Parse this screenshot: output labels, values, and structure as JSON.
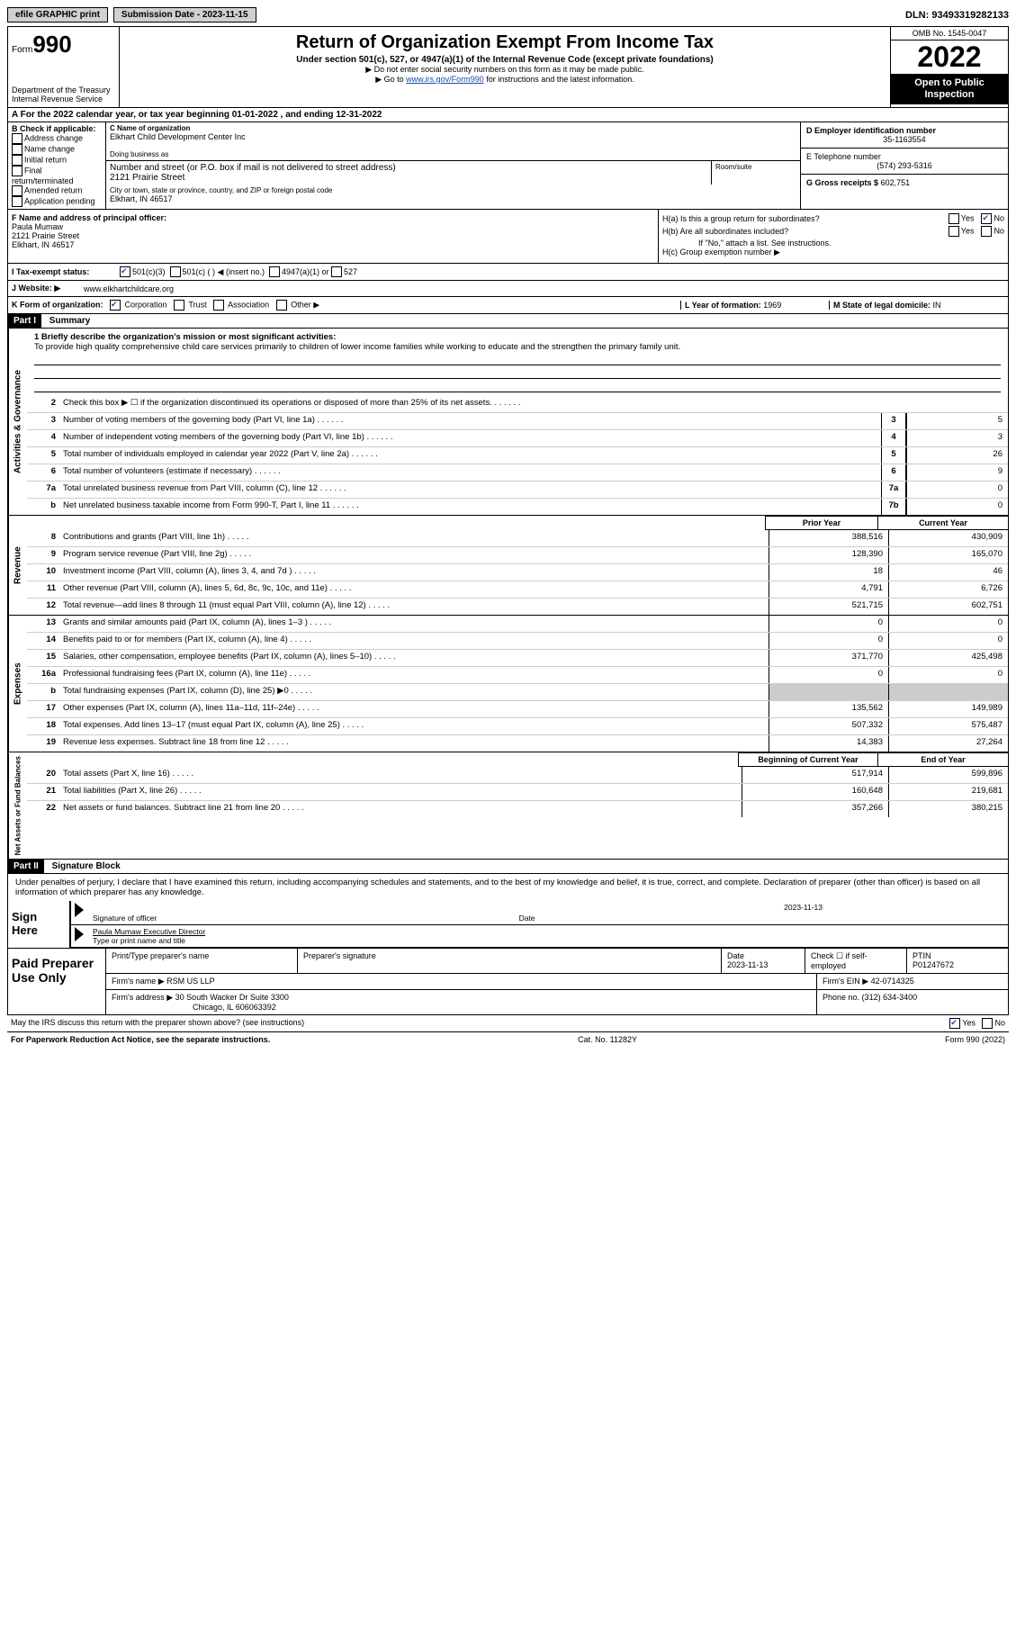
{
  "topbar": {
    "efile": "efile GRAPHIC print",
    "submission_label": "Submission Date - 2023-11-15",
    "dln_label": "DLN: 93493319282133"
  },
  "header": {
    "form_word": "Form",
    "form_num": "990",
    "dept1": "Department of the Treasury",
    "dept2": "Internal Revenue Service",
    "title": "Return of Organization Exempt From Income Tax",
    "subtitle": "Under section 501(c), 527, or 4947(a)(1) of the Internal Revenue Code (except private foundations)",
    "note1": "▶ Do not enter social security numbers on this form as it may be made public.",
    "note2_pre": "▶ Go to ",
    "note2_link": "www.irs.gov/Form990",
    "note2_post": " for instructions and the latest information.",
    "omb": "OMB No. 1545-0047",
    "year": "2022",
    "open": "Open to Public Inspection"
  },
  "row_a": "A For the 2022 calendar year, or tax year beginning 01-01-2022    , and ending 12-31-2022",
  "section_b": {
    "title": "B Check if applicable:",
    "opts": [
      "Address change",
      "Name change",
      "Initial return",
      "Final return/terminated",
      "Amended return",
      "Application pending"
    ]
  },
  "section_c": {
    "name_lbl": "C Name of organization",
    "name": "Elkhart Child Development Center Inc",
    "dba_lbl": "Doing business as",
    "addr_lbl": "Number and street (or P.O. box if mail is not delivered to street address)",
    "addr": "2121 Prairie Street",
    "room_lbl": "Room/suite",
    "city_lbl": "City or town, state or province, country, and ZIP or foreign postal code",
    "city": "Elkhart, IN  46517"
  },
  "section_d": {
    "ein_lbl": "D Employer identification number",
    "ein": "35-1163554",
    "phone_lbl": "E Telephone number",
    "phone": "(574) 293-5316",
    "gross_lbl": "G Gross receipts $",
    "gross": "602,751"
  },
  "section_f": {
    "lbl": "F Name and address of principal officer:",
    "name": "Paula Mumaw",
    "addr1": "2121 Prairie Street",
    "addr2": "Elkhart, IN  46517"
  },
  "section_h": {
    "ha": "H(a)  Is this a group return for subordinates?",
    "hb": "H(b)  Are all subordinates included?",
    "hb_note": "If \"No,\" attach a list. See instructions.",
    "hc": "H(c)  Group exemption number ▶",
    "yes": "Yes",
    "no": "No"
  },
  "row_i": {
    "lbl": "I   Tax-exempt status:",
    "o1": "501(c)(3)",
    "o2": "501(c) (   ) ◀ (insert no.)",
    "o3": "4947(a)(1) or",
    "o4": "527"
  },
  "row_j": {
    "lbl": "J   Website: ▶",
    "val": "www.elkhartchildcare.org"
  },
  "row_k": {
    "lbl": "K Form of organization:",
    "o1": "Corporation",
    "o2": "Trust",
    "o3": "Association",
    "o4": "Other ▶"
  },
  "row_l": {
    "lbl": "L Year of formation:",
    "val": "1969"
  },
  "row_m": {
    "lbl": "M State of legal domicile:",
    "val": "IN"
  },
  "part1": {
    "hdr": "Part I",
    "title": "Summary"
  },
  "side_labels": {
    "ag": "Activities & Governance",
    "rev": "Revenue",
    "exp": "Expenses",
    "net": "Net Assets or Fund Balances"
  },
  "mission": {
    "lbl": "1   Briefly describe the organization's mission or most significant activities:",
    "text": "To provide high quality comprehensive child care services primarily to children of lower income families while working to educate and the strengthen the primary family unit."
  },
  "lines_ag": [
    {
      "n": "2",
      "d": "Check this box ▶ ☐  if the organization discontinued its operations or disposed of more than 25% of its net assets.",
      "box": "",
      "v": ""
    },
    {
      "n": "3",
      "d": "Number of voting members of the governing body (Part VI, line 1a)",
      "box": "3",
      "v": "5"
    },
    {
      "n": "4",
      "d": "Number of independent voting members of the governing body (Part VI, line 1b)",
      "box": "4",
      "v": "3"
    },
    {
      "n": "5",
      "d": "Total number of individuals employed in calendar year 2022 (Part V, line 2a)",
      "box": "5",
      "v": "26"
    },
    {
      "n": "6",
      "d": "Total number of volunteers (estimate if necessary)",
      "box": "6",
      "v": "9"
    },
    {
      "n": "7a",
      "d": "Total unrelated business revenue from Part VIII, column (C), line 12",
      "box": "7a",
      "v": "0"
    },
    {
      "n": "b",
      "d": "Net unrelated business taxable income from Form 990-T, Part I, line 11",
      "box": "7b",
      "v": "0"
    }
  ],
  "col_hdrs": {
    "prior": "Prior Year",
    "current": "Current Year",
    "boy": "Beginning of Current Year",
    "eoy": "End of Year"
  },
  "lines_rev": [
    {
      "n": "8",
      "d": "Contributions and grants (Part VIII, line 1h)",
      "p": "388,516",
      "c": "430,909"
    },
    {
      "n": "9",
      "d": "Program service revenue (Part VIII, line 2g)",
      "p": "128,390",
      "c": "165,070"
    },
    {
      "n": "10",
      "d": "Investment income (Part VIII, column (A), lines 3, 4, and 7d )",
      "p": "18",
      "c": "46"
    },
    {
      "n": "11",
      "d": "Other revenue (Part VIII, column (A), lines 5, 6d, 8c, 9c, 10c, and 11e)",
      "p": "4,791",
      "c": "6,726"
    },
    {
      "n": "12",
      "d": "Total revenue—add lines 8 through 11 (must equal Part VIII, column (A), line 12)",
      "p": "521,715",
      "c": "602,751"
    }
  ],
  "lines_exp": [
    {
      "n": "13",
      "d": "Grants and similar amounts paid (Part IX, column (A), lines 1–3 )",
      "p": "0",
      "c": "0"
    },
    {
      "n": "14",
      "d": "Benefits paid to or for members (Part IX, column (A), line 4)",
      "p": "0",
      "c": "0"
    },
    {
      "n": "15",
      "d": "Salaries, other compensation, employee benefits (Part IX, column (A), lines 5–10)",
      "p": "371,770",
      "c": "425,498"
    },
    {
      "n": "16a",
      "d": "Professional fundraising fees (Part IX, column (A), line 11e)",
      "p": "0",
      "c": "0"
    },
    {
      "n": "b",
      "d": "Total fundraising expenses (Part IX, column (D), line 25) ▶0",
      "p": "gray",
      "c": "gray"
    },
    {
      "n": "17",
      "d": "Other expenses (Part IX, column (A), lines 11a–11d, 11f–24e)",
      "p": "135,562",
      "c": "149,989"
    },
    {
      "n": "18",
      "d": "Total expenses. Add lines 13–17 (must equal Part IX, column (A), line 25)",
      "p": "507,332",
      "c": "575,487"
    },
    {
      "n": "19",
      "d": "Revenue less expenses. Subtract line 18 from line 12",
      "p": "14,383",
      "c": "27,264"
    }
  ],
  "lines_net": [
    {
      "n": "20",
      "d": "Total assets (Part X, line 16)",
      "p": "517,914",
      "c": "599,896"
    },
    {
      "n": "21",
      "d": "Total liabilities (Part X, line 26)",
      "p": "160,648",
      "c": "219,681"
    },
    {
      "n": "22",
      "d": "Net assets or fund balances. Subtract line 21 from line 20",
      "p": "357,266",
      "c": "380,215"
    }
  ],
  "part2": {
    "hdr": "Part II",
    "title": "Signature Block"
  },
  "sig": {
    "decl": "Under penalties of perjury, I declare that I have examined this return, including accompanying schedules and statements, and to the best of my knowledge and belief, it is true, correct, and complete. Declaration of preparer (other than officer) is based on all information of which preparer has any knowledge.",
    "sign_here": "Sign Here",
    "sig_lbl": "Signature of officer",
    "date_lbl": "Date",
    "date_val": "2023-11-13",
    "name_title": "Paula Mumaw  Executive Director",
    "type_lbl": "Type or print name and title"
  },
  "prep": {
    "title": "Paid Preparer Use Only",
    "name_lbl": "Print/Type preparer's name",
    "sig_lbl": "Preparer's signature",
    "date_lbl": "Date",
    "date_val": "2023-11-13",
    "self_lbl": "Check ☐  if self-employed",
    "ptin_lbl": "PTIN",
    "ptin": "P01247672",
    "firm_name_lbl": "Firm's name    ▶",
    "firm_name": "RSM US LLP",
    "firm_ein_lbl": "Firm's EIN ▶",
    "firm_ein": "42-0714325",
    "firm_addr_lbl": "Firm's address ▶",
    "firm_addr1": "30 South Wacker Dr Suite 3300",
    "firm_addr2": "Chicago, IL  606063392",
    "phone_lbl": "Phone no.",
    "phone": "(312) 634-3400"
  },
  "footer": {
    "discuss": "May the IRS discuss this return with the preparer shown above? (see instructions)",
    "yes": "Yes",
    "no": "No",
    "paperwork": "For Paperwork Reduction Act Notice, see the separate instructions.",
    "cat": "Cat. No. 11282Y",
    "form": "Form 990 (2022)"
  }
}
